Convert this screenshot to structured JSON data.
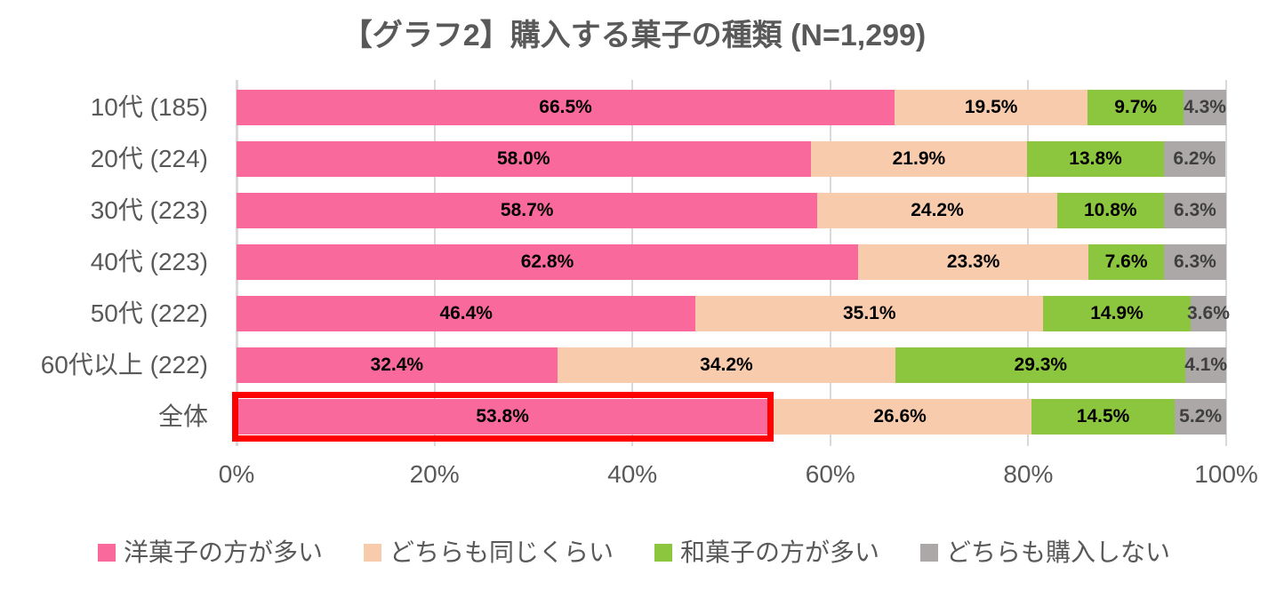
{
  "chart_data": {
    "type": "bar",
    "orientation": "horizontal",
    "stacked": true,
    "title": "【グラフ2】購入する菓子の種類 (N=1,299)",
    "categories": [
      "10代 (185)",
      "20代 (224)",
      "30代 (223)",
      "40代 (223)",
      "50代 (222)",
      "60代以上 (222)",
      "全体"
    ],
    "series": [
      {
        "name": "洋菓子の方が多い",
        "color": "#FA699B",
        "label_color": "#000000",
        "values": [
          66.5,
          58.0,
          58.7,
          62.8,
          46.4,
          32.4,
          53.8
        ]
      },
      {
        "name": "どちらも同じくらい",
        "color": "#F8CBAD",
        "label_color": "#000000",
        "values": [
          19.5,
          21.9,
          24.2,
          23.3,
          35.1,
          34.2,
          26.6
        ]
      },
      {
        "name": "和菓子の方が多い",
        "color": "#8CC63E",
        "label_color": "#000000",
        "values": [
          9.7,
          13.8,
          10.8,
          7.6,
          14.9,
          29.3,
          14.5
        ]
      },
      {
        "name": "どちらも購入しない",
        "color": "#ACA8A8",
        "label_color": "#3F3F3F",
        "values": [
          4.3,
          6.2,
          6.3,
          6.3,
          3.6,
          4.1,
          5.2
        ]
      }
    ],
    "value_suffix": "%",
    "x_axis": {
      "ticks": [
        "0%",
        "20%",
        "40%",
        "60%",
        "80%",
        "100%"
      ],
      "min": 0,
      "max": 100
    },
    "legend": {
      "position": "bottom"
    },
    "highlight": {
      "category": "全体",
      "series": "洋菓子の方が多い",
      "value": 53.8,
      "box_color": "#FF0000"
    },
    "style_colors": {
      "grid": "#D9D9D9",
      "axis_text": "#595959",
      "title_text": "#595959"
    },
    "grid": true
  }
}
